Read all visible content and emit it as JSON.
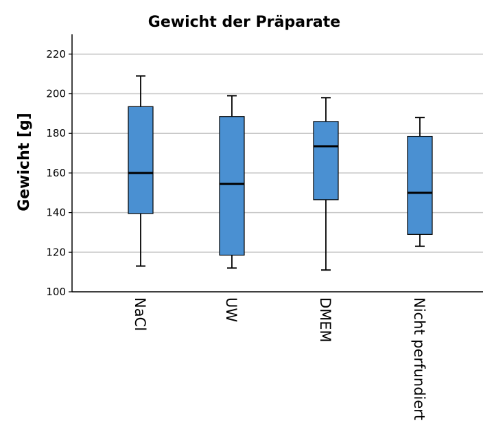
{
  "chart_data": {
    "type": "boxplot",
    "title": "Gewicht der Präparate",
    "xlabel": "",
    "ylabel": "Gewicht [g]",
    "ylim": [
      100,
      230
    ],
    "yticks": [
      100,
      120,
      140,
      160,
      180,
      200,
      220
    ],
    "grid": true,
    "legend": "none",
    "box_color": "#4a90d2",
    "categories": [
      "NaCl",
      "UW",
      "DMEM",
      "Nicht perfundiert"
    ],
    "boxes": [
      {
        "category": "NaCl",
        "min": 113,
        "q1": 139.5,
        "median": 160,
        "q3": 193.5,
        "max": 209
      },
      {
        "category": "UW",
        "min": 112,
        "q1": 118.5,
        "median": 154.5,
        "q3": 188.5,
        "max": 199
      },
      {
        "category": "DMEM",
        "min": 111,
        "q1": 146.5,
        "median": 173.5,
        "q3": 186,
        "max": 198
      },
      {
        "category": "Nicht perfundiert",
        "min": 123,
        "q1": 129,
        "median": 150,
        "q3": 178.5,
        "max": 188
      }
    ]
  }
}
